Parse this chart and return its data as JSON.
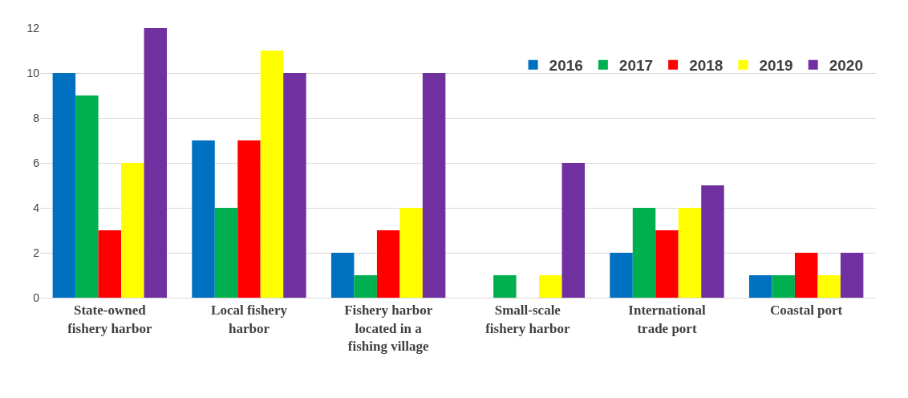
{
  "chart_data": {
    "type": "bar",
    "categories": [
      "State-owned fishery harbor",
      "Local fishery harbor",
      "Fishery harbor located in a fishing village",
      "Small-scale fishery harbor",
      "International trade port",
      "Coastal port"
    ],
    "series": [
      {
        "name": "2016",
        "color": "#0070c0",
        "values": [
          10,
          7,
          2,
          null,
          2,
          1
        ]
      },
      {
        "name": "2017",
        "color": "#00b050",
        "values": [
          9,
          4,
          1,
          1,
          4,
          1
        ]
      },
      {
        "name": "2018",
        "color": "#ff0000",
        "values": [
          3,
          7,
          3,
          0,
          3,
          2
        ]
      },
      {
        "name": "2019",
        "color": "#ffff00",
        "values": [
          6,
          11,
          4,
          1,
          4,
          1
        ]
      },
      {
        "name": "2020",
        "color": "#7030a0",
        "values": [
          12,
          10,
          10,
          6,
          5,
          2
        ]
      }
    ],
    "ylim": [
      0,
      12
    ],
    "yticks": [
      0,
      2,
      4,
      6,
      8,
      10,
      12
    ],
    "grid": "y",
    "legend": "top right"
  }
}
